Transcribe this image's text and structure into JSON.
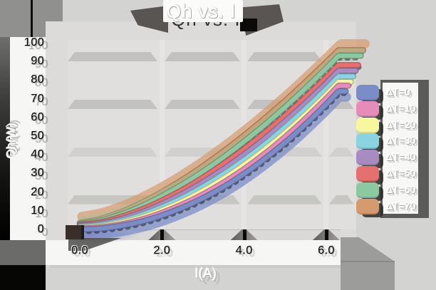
{
  "title": "Qh vs. I",
  "axes": {
    "x_title": "I(A)",
    "y_title": "Qh(W)"
  },
  "legend": {
    "position": "right",
    "items": [
      {
        "label": "ΔT=0",
        "color": "#7b8dc7"
      },
      {
        "label": "ΔT=10",
        "color": "#e78cba"
      },
      {
        "label": "ΔT=20",
        "color": "#f7f7a0"
      },
      {
        "label": "ΔT=30",
        "color": "#8ad4e2"
      },
      {
        "label": "ΔT=40",
        "color": "#a88bc1"
      },
      {
        "label": "ΔT=50",
        "color": "#e66f6f"
      },
      {
        "label": "ΔT=60",
        "color": "#8cc9a1"
      },
      {
        "label": "ΔT=70",
        "color": "#d59a6d"
      }
    ]
  },
  "chart_data": {
    "type": "line",
    "style": "3d-ribbon",
    "title": "Qh vs. I",
    "xlabel": "I(A)",
    "ylabel": "Qh(W)",
    "xlim": [
      0,
      6.3
    ],
    "ylim": [
      0,
      100
    ],
    "x_tick_labels": [
      "0.0",
      "2.0",
      "4.0",
      "6.0"
    ],
    "y_tick_labels": [
      "0",
      "10",
      "20",
      "30",
      "40",
      "50",
      "60",
      "70",
      "80",
      "90",
      "100"
    ],
    "wall_band_values": [
      16,
      41.5,
      67,
      92.5
    ],
    "legend_position": "right",
    "background": "#d3d3d1",
    "x": [
      0,
      0.5,
      1,
      1.5,
      2,
      2.5,
      3,
      3.5,
      4,
      4.5,
      5,
      5.5,
      6,
      6.3
    ],
    "series": [
      {
        "name": "ΔT=0",
        "color": "#7b8dc7",
        "values": [
          0,
          0.5,
          1.9,
          4.2,
          7.5,
          11.7,
          16.8,
          22.8,
          29.8,
          37.8,
          46.6,
          56.4,
          67.1,
          74
        ]
      },
      {
        "name": "ΔT=10",
        "color": "#e78cba",
        "values": [
          0.5,
          1.1,
          2.7,
          5.3,
          8.9,
          13.4,
          18.8,
          25.1,
          32.3,
          40.5,
          49.5,
          59.4,
          70.1,
          77
        ]
      },
      {
        "name": "ΔT=20",
        "color": "#f7f7a0",
        "values": [
          1,
          1.7,
          3.6,
          6.4,
          10.3,
          15.0,
          20.7,
          27.2,
          34.6,
          42.8,
          51.8,
          61.6,
          72.2,
          79
        ]
      },
      {
        "name": "ΔT=30",
        "color": "#8ad4e2",
        "values": [
          1.5,
          2.4,
          4.5,
          7.7,
          11.9,
          16.9,
          22.9,
          29.7,
          37.3,
          45.6,
          54.8,
          64.7,
          75.3,
          82
        ]
      },
      {
        "name": "ΔT=40",
        "color": "#a88bc1",
        "values": [
          2,
          3.1,
          5.5,
          9.1,
          13.6,
          19.0,
          25.3,
          32.3,
          40.1,
          48.6,
          57.9,
          67.8,
          78.3,
          85
        ]
      },
      {
        "name": "ΔT=50",
        "color": "#e66f6f",
        "values": [
          2.5,
          3.8,
          6.7,
          10.6,
          15.5,
          21.2,
          27.8,
          35.1,
          43.0,
          51.7,
          61.0,
          70.9,
          81.4,
          88
        ]
      },
      {
        "name": "ΔT=60",
        "color": "#8cc9a1",
        "values": [
          3,
          4.7,
          8.0,
          12.4,
          17.9,
          24.1,
          31.0,
          38.7,
          47.1,
          56.0,
          65.6,
          75.7,
          86.4,
          93
        ]
      },
      {
        "name": "ΔT=70",
        "color": "#d59a6d",
        "values": [
          3.5,
          5.6,
          9.3,
          14.2,
          20.0,
          26.6,
          33.9,
          41.8,
          50.3,
          59.4,
          68.9,
          79.0,
          89.5,
          96
        ]
      }
    ]
  }
}
